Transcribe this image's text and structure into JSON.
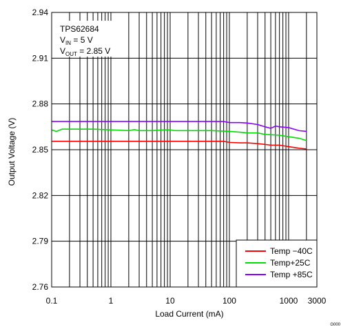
{
  "chart_data": {
    "type": "line",
    "xscale": "log",
    "xlim": [
      0.1,
      3000
    ],
    "ylim": [
      2.76,
      2.94
    ],
    "xticks": [
      0.1,
      1,
      10,
      100,
      1000,
      3000
    ],
    "xtick_labels": [
      "0.1",
      "1",
      "10",
      "100",
      "1000",
      "3000"
    ],
    "yticks": [
      2.76,
      2.79,
      2.82,
      2.85,
      2.88,
      2.91,
      2.94
    ],
    "ytick_labels": [
      "2.76",
      "2.79",
      "2.82",
      "2.85",
      "2.88",
      "2.91",
      "2.94"
    ],
    "xlabel": "Load Current (mA)",
    "ylabel": "Output Voltage (V)",
    "grid": true,
    "legend_position": "bottom-right",
    "annotation": {
      "device": "TPS62684",
      "vin_label": "V",
      "vin_sub": "IN",
      "vin_value": " = 5 V",
      "vout_label": "V",
      "vout_sub": "OUT",
      "vout_value": " = 2.85 V"
    },
    "figure_code": "G000",
    "series": [
      {
        "name": "Temp −40C",
        "color": "#ff0000",
        "x": [
          0.1,
          0.3,
          1,
          3,
          10,
          30,
          80,
          100,
          150,
          200,
          300,
          500,
          700,
          1000,
          1500,
          2000
        ],
        "y": [
          2.8555,
          2.8555,
          2.8555,
          2.8555,
          2.8555,
          2.8555,
          2.8555,
          2.8548,
          2.8545,
          2.8545,
          2.854,
          2.853,
          2.853,
          2.852,
          2.851,
          2.8505
        ]
      },
      {
        "name": "Temp+25C",
        "color": "#00dd00",
        "x": [
          0.1,
          0.12,
          0.15,
          0.2,
          0.5,
          1,
          2,
          2.5,
          3,
          5,
          8,
          10,
          12,
          20,
          50,
          100,
          150,
          200,
          300,
          400,
          500,
          700,
          1000,
          1500,
          2000
        ],
        "y": [
          2.863,
          2.862,
          2.8635,
          2.8635,
          2.8635,
          2.863,
          2.8625,
          2.8632,
          2.8625,
          2.8625,
          2.863,
          2.863,
          2.8625,
          2.8625,
          2.8625,
          2.862,
          2.8615,
          2.861,
          2.861,
          2.86,
          2.8598,
          2.8595,
          2.8585,
          2.8575,
          2.856
        ]
      },
      {
        "name": "Temp +85C",
        "color": "#8800ff",
        "x": [
          0.1,
          0.3,
          1,
          3,
          10,
          30,
          80,
          100,
          150,
          200,
          300,
          400,
          500,
          600,
          700,
          1000,
          1500,
          2000
        ],
        "y": [
          2.8685,
          2.8685,
          2.8685,
          2.8685,
          2.8685,
          2.8685,
          2.8685,
          2.8678,
          2.8678,
          2.8675,
          2.8665,
          2.865,
          2.864,
          2.8655,
          2.865,
          2.8645,
          2.8625,
          2.862
        ]
      }
    ]
  }
}
